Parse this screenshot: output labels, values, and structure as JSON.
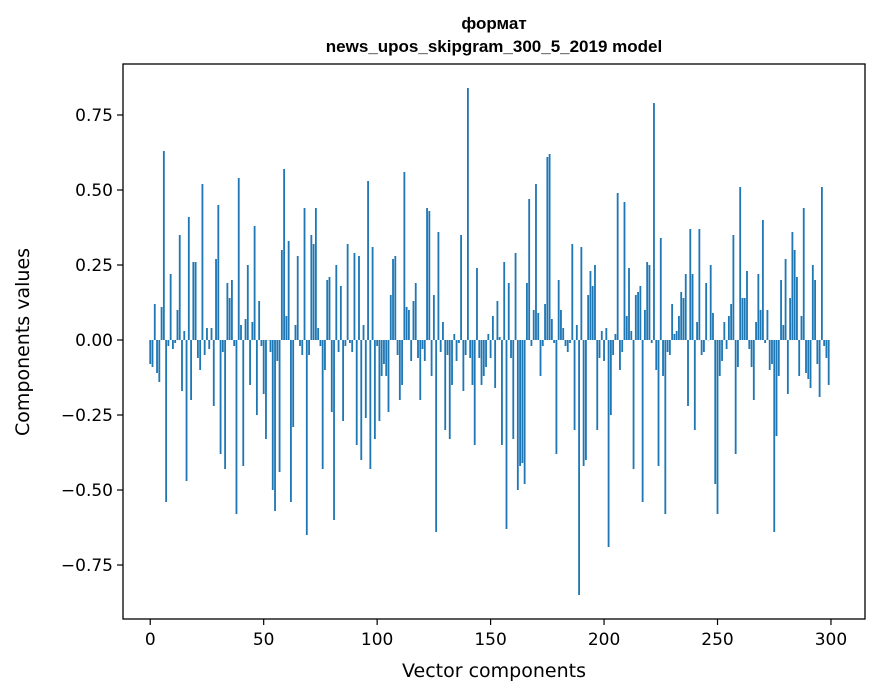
{
  "chart_data": {
    "type": "bar",
    "title_line1": "формат",
    "title_line2": "news_upos_skipgram_300_5_2019 model",
    "xlabel": "Vector components",
    "ylabel": "Components values",
    "xlim": [
      -12,
      315
    ],
    "ylim": [
      -0.93,
      0.92
    ],
    "xticks": [
      0,
      50,
      100,
      150,
      200,
      250,
      300
    ],
    "xtick_labels": [
      "0",
      "50",
      "100",
      "150",
      "200",
      "250",
      "300"
    ],
    "yticks": [
      0.75,
      0.5,
      0.25,
      0.0,
      -0.25,
      -0.5,
      -0.75
    ],
    "ytick_labels": [
      "0.75",
      "0.50",
      "0.25",
      "0.00",
      "−0.25",
      "−0.50",
      "−0.75"
    ],
    "bar_color": "#1f77b4",
    "grid": false,
    "values": [
      -0.08,
      -0.09,
      0.12,
      -0.11,
      -0.14,
      0.11,
      0.63,
      -0.54,
      -0.02,
      0.22,
      -0.03,
      -0.01,
      0.1,
      0.35,
      -0.17,
      0.03,
      -0.47,
      0.41,
      -0.2,
      0.26,
      0.26,
      -0.06,
      -0.1,
      0.52,
      -0.05,
      0.04,
      -0.03,
      0.04,
      -0.22,
      0.27,
      0.45,
      -0.38,
      -0.04,
      -0.43,
      0.19,
      0.14,
      0.2,
      -0.02,
      -0.58,
      0.54,
      0.05,
      -0.42,
      0.07,
      0.25,
      -0.15,
      0.06,
      0.38,
      -0.25,
      0.13,
      -0.02,
      -0.18,
      -0.33,
      0.0,
      -0.04,
      -0.5,
      -0.57,
      -0.07,
      -0.44,
      0.3,
      0.57,
      0.08,
      0.33,
      -0.54,
      -0.29,
      0.05,
      0.28,
      -0.02,
      -0.05,
      0.44,
      -0.65,
      -0.05,
      0.35,
      0.32,
      0.44,
      0.04,
      -0.02,
      -0.43,
      -0.1,
      0.2,
      0.21,
      -0.24,
      -0.6,
      0.25,
      -0.04,
      0.18,
      -0.27,
      -0.02,
      0.32,
      -0.01,
      -0.04,
      0.29,
      -0.35,
      0.28,
      -0.4,
      0.05,
      -0.26,
      0.53,
      -0.43,
      0.31,
      -0.33,
      -0.02,
      -0.27,
      -0.12,
      -0.08,
      -0.12,
      -0.24,
      0.15,
      0.27,
      0.28,
      -0.05,
      -0.2,
      -0.15,
      0.56,
      0.11,
      0.1,
      -0.07,
      0.13,
      0.19,
      -0.06,
      -0.2,
      -0.03,
      -0.07,
      0.44,
      0.43,
      -0.12,
      0.15,
      -0.64,
      0.36,
      -0.04,
      0.06,
      -0.3,
      -0.05,
      -0.33,
      -0.15,
      0.02,
      -0.07,
      -0.01,
      0.35,
      -0.17,
      -0.05,
      0.84,
      -0.06,
      -0.15,
      -0.35,
      0.24,
      -0.06,
      -0.15,
      -0.12,
      -0.09,
      0.02,
      -0.06,
      0.08,
      -0.16,
      0.13,
      0.01,
      -0.35,
      0.26,
      -0.63,
      0.19,
      -0.06,
      -0.33,
      0.29,
      -0.5,
      -0.42,
      -0.41,
      -0.48,
      0.19,
      0.47,
      -0.02,
      0.1,
      0.52,
      0.09,
      -0.12,
      -0.02,
      0.12,
      0.61,
      0.62,
      0.07,
      -0.01,
      -0.38,
      0.2,
      0.1,
      0.04,
      -0.02,
      -0.04,
      -0.01,
      0.32,
      -0.3,
      0.05,
      -0.85,
      0.31,
      -0.42,
      -0.4,
      0.15,
      0.23,
      0.18,
      0.25,
      -0.3,
      -0.06,
      0.03,
      -0.07,
      0.04,
      -0.69,
      -0.25,
      -0.05,
      0.02,
      0.49,
      -0.1,
      -0.04,
      0.46,
      0.08,
      0.24,
      0.03,
      -0.43,
      0.15,
      0.16,
      0.18,
      -0.54,
      0.1,
      0.26,
      0.25,
      -0.01,
      0.79,
      -0.1,
      -0.42,
      0.34,
      -0.12,
      -0.58,
      -0.04,
      -0.05,
      0.12,
      0.02,
      0.03,
      0.08,
      0.16,
      0.14,
      0.22,
      -0.22,
      0.37,
      0.22,
      -0.3,
      0.06,
      0.37,
      -0.05,
      -0.04,
      0.19,
      0.0,
      0.25,
      0.09,
      -0.48,
      -0.58,
      -0.12,
      -0.07,
      0.06,
      -0.03,
      0.08,
      0.12,
      0.35,
      -0.38,
      -0.09,
      0.51,
      0.14,
      0.14,
      0.23,
      -0.03,
      -0.09,
      -0.2,
      0.06,
      0.22,
      0.1,
      0.4,
      -0.01,
      0.1,
      -0.1,
      -0.08,
      -0.64,
      -0.32,
      -0.12,
      0.2,
      0.05,
      0.27,
      -0.18,
      0.14,
      0.36,
      0.3,
      0.21,
      -0.12,
      0.08,
      0.44,
      -0.11,
      -0.13,
      -0.16,
      0.25,
      0.2,
      -0.08,
      -0.19,
      0.51,
      -0.02,
      -0.06,
      -0.15
    ]
  }
}
